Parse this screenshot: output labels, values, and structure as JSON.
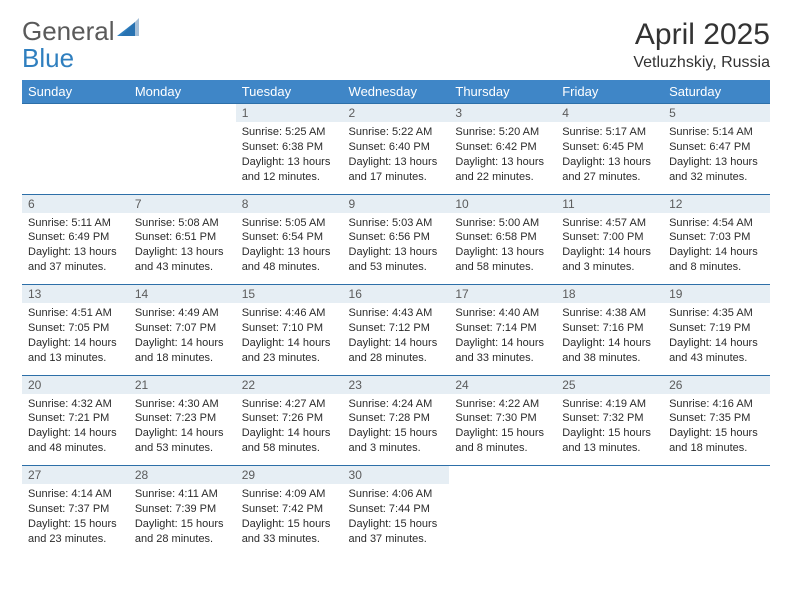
{
  "logo": {
    "line1": "General",
    "line2": "Blue"
  },
  "title": "April 2025",
  "subtitle": "Vetluzhskiy, Russia",
  "colors": {
    "header_bg": "#3f86c7",
    "header_text": "#ffffff",
    "daynum_bg": "#e6eef4",
    "daynum_text": "#5b5b5b",
    "rule": "#2d6fa8",
    "body_text": "#2b2b2b",
    "logo_gray": "#5a5a5a",
    "logo_blue": "#2f7fbf",
    "background": "#ffffff"
  },
  "weekdays": [
    "Sunday",
    "Monday",
    "Tuesday",
    "Wednesday",
    "Thursday",
    "Friday",
    "Saturday"
  ],
  "weeks": [
    [
      null,
      null,
      {
        "day": "1",
        "sunrise": "Sunrise: 5:25 AM",
        "sunset": "Sunset: 6:38 PM",
        "daylight": "Daylight: 13 hours and 12 minutes."
      },
      {
        "day": "2",
        "sunrise": "Sunrise: 5:22 AM",
        "sunset": "Sunset: 6:40 PM",
        "daylight": "Daylight: 13 hours and 17 minutes."
      },
      {
        "day": "3",
        "sunrise": "Sunrise: 5:20 AM",
        "sunset": "Sunset: 6:42 PM",
        "daylight": "Daylight: 13 hours and 22 minutes."
      },
      {
        "day": "4",
        "sunrise": "Sunrise: 5:17 AM",
        "sunset": "Sunset: 6:45 PM",
        "daylight": "Daylight: 13 hours and 27 minutes."
      },
      {
        "day": "5",
        "sunrise": "Sunrise: 5:14 AM",
        "sunset": "Sunset: 6:47 PM",
        "daylight": "Daylight: 13 hours and 32 minutes."
      }
    ],
    [
      {
        "day": "6",
        "sunrise": "Sunrise: 5:11 AM",
        "sunset": "Sunset: 6:49 PM",
        "daylight": "Daylight: 13 hours and 37 minutes."
      },
      {
        "day": "7",
        "sunrise": "Sunrise: 5:08 AM",
        "sunset": "Sunset: 6:51 PM",
        "daylight": "Daylight: 13 hours and 43 minutes."
      },
      {
        "day": "8",
        "sunrise": "Sunrise: 5:05 AM",
        "sunset": "Sunset: 6:54 PM",
        "daylight": "Daylight: 13 hours and 48 minutes."
      },
      {
        "day": "9",
        "sunrise": "Sunrise: 5:03 AM",
        "sunset": "Sunset: 6:56 PM",
        "daylight": "Daylight: 13 hours and 53 minutes."
      },
      {
        "day": "10",
        "sunrise": "Sunrise: 5:00 AM",
        "sunset": "Sunset: 6:58 PM",
        "daylight": "Daylight: 13 hours and 58 minutes."
      },
      {
        "day": "11",
        "sunrise": "Sunrise: 4:57 AM",
        "sunset": "Sunset: 7:00 PM",
        "daylight": "Daylight: 14 hours and 3 minutes."
      },
      {
        "day": "12",
        "sunrise": "Sunrise: 4:54 AM",
        "sunset": "Sunset: 7:03 PM",
        "daylight": "Daylight: 14 hours and 8 minutes."
      }
    ],
    [
      {
        "day": "13",
        "sunrise": "Sunrise: 4:51 AM",
        "sunset": "Sunset: 7:05 PM",
        "daylight": "Daylight: 14 hours and 13 minutes."
      },
      {
        "day": "14",
        "sunrise": "Sunrise: 4:49 AM",
        "sunset": "Sunset: 7:07 PM",
        "daylight": "Daylight: 14 hours and 18 minutes."
      },
      {
        "day": "15",
        "sunrise": "Sunrise: 4:46 AM",
        "sunset": "Sunset: 7:10 PM",
        "daylight": "Daylight: 14 hours and 23 minutes."
      },
      {
        "day": "16",
        "sunrise": "Sunrise: 4:43 AM",
        "sunset": "Sunset: 7:12 PM",
        "daylight": "Daylight: 14 hours and 28 minutes."
      },
      {
        "day": "17",
        "sunrise": "Sunrise: 4:40 AM",
        "sunset": "Sunset: 7:14 PM",
        "daylight": "Daylight: 14 hours and 33 minutes."
      },
      {
        "day": "18",
        "sunrise": "Sunrise: 4:38 AM",
        "sunset": "Sunset: 7:16 PM",
        "daylight": "Daylight: 14 hours and 38 minutes."
      },
      {
        "day": "19",
        "sunrise": "Sunrise: 4:35 AM",
        "sunset": "Sunset: 7:19 PM",
        "daylight": "Daylight: 14 hours and 43 minutes."
      }
    ],
    [
      {
        "day": "20",
        "sunrise": "Sunrise: 4:32 AM",
        "sunset": "Sunset: 7:21 PM",
        "daylight": "Daylight: 14 hours and 48 minutes."
      },
      {
        "day": "21",
        "sunrise": "Sunrise: 4:30 AM",
        "sunset": "Sunset: 7:23 PM",
        "daylight": "Daylight: 14 hours and 53 minutes."
      },
      {
        "day": "22",
        "sunrise": "Sunrise: 4:27 AM",
        "sunset": "Sunset: 7:26 PM",
        "daylight": "Daylight: 14 hours and 58 minutes."
      },
      {
        "day": "23",
        "sunrise": "Sunrise: 4:24 AM",
        "sunset": "Sunset: 7:28 PM",
        "daylight": "Daylight: 15 hours and 3 minutes."
      },
      {
        "day": "24",
        "sunrise": "Sunrise: 4:22 AM",
        "sunset": "Sunset: 7:30 PM",
        "daylight": "Daylight: 15 hours and 8 minutes."
      },
      {
        "day": "25",
        "sunrise": "Sunrise: 4:19 AM",
        "sunset": "Sunset: 7:32 PM",
        "daylight": "Daylight: 15 hours and 13 minutes."
      },
      {
        "day": "26",
        "sunrise": "Sunrise: 4:16 AM",
        "sunset": "Sunset: 7:35 PM",
        "daylight": "Daylight: 15 hours and 18 minutes."
      }
    ],
    [
      {
        "day": "27",
        "sunrise": "Sunrise: 4:14 AM",
        "sunset": "Sunset: 7:37 PM",
        "daylight": "Daylight: 15 hours and 23 minutes."
      },
      {
        "day": "28",
        "sunrise": "Sunrise: 4:11 AM",
        "sunset": "Sunset: 7:39 PM",
        "daylight": "Daylight: 15 hours and 28 minutes."
      },
      {
        "day": "29",
        "sunrise": "Sunrise: 4:09 AM",
        "sunset": "Sunset: 7:42 PM",
        "daylight": "Daylight: 15 hours and 33 minutes."
      },
      {
        "day": "30",
        "sunrise": "Sunrise: 4:06 AM",
        "sunset": "Sunset: 7:44 PM",
        "daylight": "Daylight: 15 hours and 37 minutes."
      },
      null,
      null,
      null
    ]
  ]
}
